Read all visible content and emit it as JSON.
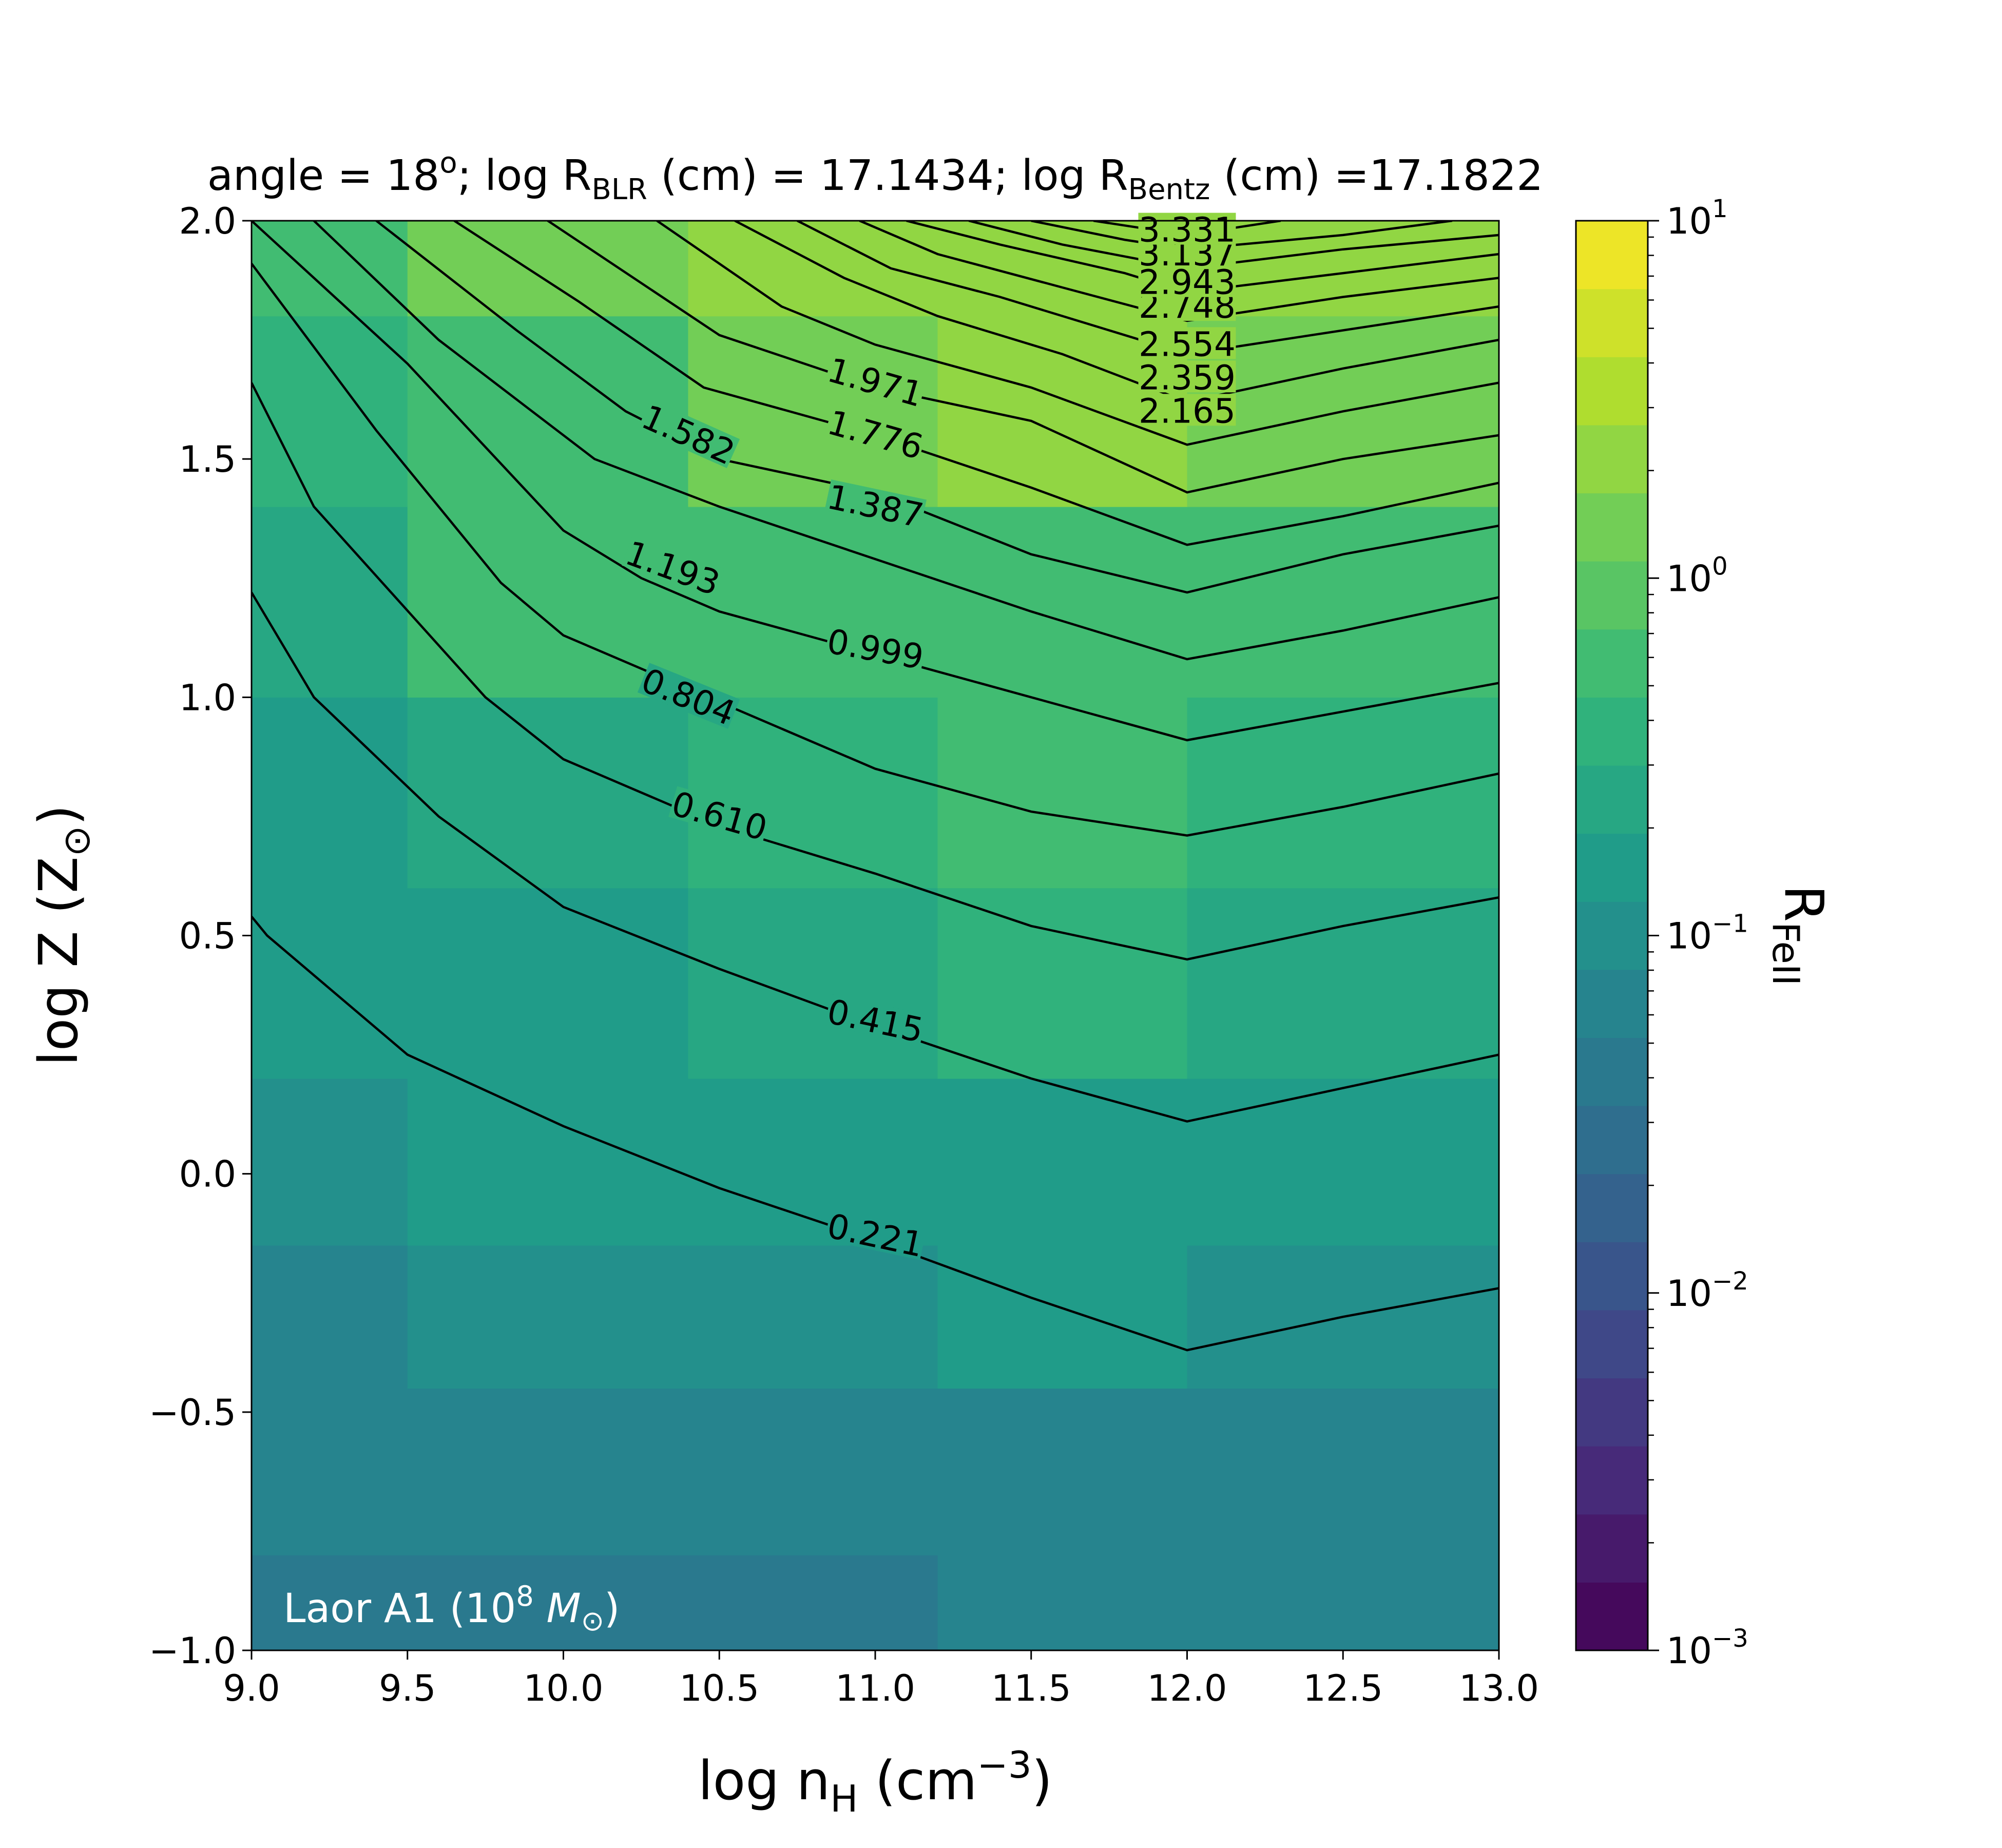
{
  "chart_data": {
    "type": "heatmap",
    "title": {
      "prefix": "angle = 18",
      "deg": "o",
      "mid1": "; log R",
      "sub1": "BLR",
      "mid2": " (cm) = 17.1434; log R",
      "sub2": "Bentz",
      "end": " (cm) =17.1822"
    },
    "xlabel": {
      "main": "log n",
      "sub": "H",
      "tail": " (cm",
      "sup": "−3",
      "close": ")"
    },
    "ylabel": {
      "main": "log Z (Z",
      "sub": "⊙",
      "close": ")"
    },
    "colorbar_label": {
      "main": "R",
      "sub": "FeII"
    },
    "annotation": {
      "main": "Laor A1 (10",
      "sup": "8",
      "tail": " ",
      "mass": "M",
      "sub": "⊙",
      "close": ")"
    },
    "xlim": [
      9.0,
      13.0
    ],
    "ylim": [
      -1.0,
      2.0
    ],
    "x_ticks": [
      9.0,
      9.5,
      10.0,
      10.5,
      11.0,
      11.5,
      12.0,
      12.5,
      13.0
    ],
    "x_tick_labels": [
      "9.0",
      "9.5",
      "10.0",
      "10.5",
      "11.0",
      "11.5",
      "12.0",
      "12.5",
      "13.0"
    ],
    "y_ticks": [
      -1.0,
      -0.5,
      0.0,
      0.5,
      1.0,
      1.5,
      2.0
    ],
    "y_tick_labels": [
      "−1.0",
      "−0.5",
      "0.0",
      "0.5",
      "1.0",
      "1.5",
      "2.0"
    ],
    "x_centers": [
      9.0,
      10.0,
      10.8,
      11.6,
      12.4,
      13.0
    ],
    "y_centers": [
      -1.0,
      -0.6,
      -0.3,
      0.0,
      0.4,
      0.8,
      1.2,
      1.6,
      2.0
    ],
    "z_log10": [
      [
        -1.45,
        -1.45,
        -1.45,
        -1.25,
        -1.25,
        -1.25
      ],
      [
        -1.25,
        -1.25,
        -1.15,
        -1.15,
        -1.15,
        -1.15
      ],
      [
        -1.15,
        -1.0,
        -1.0,
        -0.85,
        -1.0,
        -1.0
      ],
      [
        -1.0,
        -0.85,
        -0.75,
        -0.75,
        -0.85,
        -0.85
      ],
      [
        -0.85,
        -0.75,
        -0.6,
        -0.45,
        -0.6,
        -0.6
      ],
      [
        -0.75,
        -0.6,
        -0.45,
        -0.3,
        -0.45,
        -0.45
      ],
      [
        -0.6,
        -0.3,
        -0.15,
        -0.15,
        -0.15,
        -0.15
      ],
      [
        -0.45,
        -0.15,
        0.15,
        0.3,
        0.15,
        0.15
      ],
      [
        -0.3,
        0.15,
        0.3,
        0.3,
        0.3,
        0.3
      ]
    ],
    "color_scale": "viridis",
    "color_log_range": [
      -3,
      1
    ],
    "color_levels": 21,
    "colorbar_ticks": [
      -3,
      -2,
      -1,
      0,
      1
    ],
    "colorbar_tick_labels": [
      "10",
      "10",
      "10",
      "10",
      "10"
    ],
    "colorbar_tick_sups": [
      "−3",
      "−2",
      "−1",
      "0",
      "1"
    ],
    "contours": [
      {
        "label": "0.221",
        "x": [
          9.0,
          9.05,
          9.5,
          10.0,
          10.5,
          11.0,
          11.5,
          12.0,
          12.5,
          13.0
        ],
        "y": [
          0.54,
          0.5,
          0.25,
          0.1,
          -0.03,
          -0.14,
          -0.26,
          -0.37,
          -0.3,
          -0.24
        ]
      },
      {
        "label": "0.415",
        "x": [
          9.0,
          9.2,
          9.6,
          10.0,
          10.5,
          11.0,
          11.5,
          12.0,
          12.5,
          13.0
        ],
        "y": [
          1.22,
          1.0,
          0.75,
          0.56,
          0.43,
          0.31,
          0.2,
          0.11,
          0.18,
          0.25
        ]
      },
      {
        "label": "0.610",
        "x": [
          9.0,
          9.2,
          9.75,
          10.0,
          10.5,
          11.0,
          11.5,
          12.0,
          12.5,
          13.0
        ],
        "y": [
          1.66,
          1.4,
          1.0,
          0.87,
          0.73,
          0.63,
          0.52,
          0.45,
          0.52,
          0.58
        ]
      },
      {
        "label": "0.804",
        "x": [
          9.0,
          9.4,
          9.8,
          10.0,
          10.5,
          11.0,
          11.5,
          12.0,
          12.5,
          13.0
        ],
        "y": [
          1.91,
          1.56,
          1.24,
          1.13,
          0.99,
          0.85,
          0.76,
          0.71,
          0.77,
          0.84
        ]
      },
      {
        "label": "0.999",
        "x": [
          9.0,
          9.5,
          10.0,
          10.25,
          10.5,
          11.0,
          11.5,
          12.0,
          12.5,
          13.0
        ],
        "y": [
          2.0,
          1.7,
          1.35,
          1.25,
          1.18,
          1.09,
          1.0,
          0.91,
          0.97,
          1.03
        ]
      },
      {
        "label": "1.193",
        "x": [
          9.2,
          9.6,
          10.1,
          10.5,
          11.0,
          11.5,
          12.0,
          12.5,
          13.0
        ],
        "y": [
          2.0,
          1.75,
          1.5,
          1.4,
          1.29,
          1.18,
          1.08,
          1.14,
          1.21
        ]
      },
      {
        "label": "1.387",
        "x": [
          9.4,
          9.85,
          10.2,
          10.5,
          11.0,
          11.5,
          12.0,
          12.5,
          13.0
        ],
        "y": [
          2.0,
          1.77,
          1.6,
          1.5,
          1.43,
          1.3,
          1.22,
          1.3,
          1.36
        ]
      },
      {
        "label": "1.582",
        "x": [
          9.65,
          10.05,
          10.45,
          11.0,
          11.5,
          12.0,
          12.5,
          13.0
        ],
        "y": [
          2.0,
          1.83,
          1.65,
          1.55,
          1.44,
          1.32,
          1.38,
          1.45
        ]
      },
      {
        "label": "1.776",
        "x": [
          9.95,
          10.5,
          11.0,
          11.5,
          12.0,
          12.5,
          13.0
        ],
        "y": [
          2.0,
          1.76,
          1.65,
          1.58,
          1.43,
          1.5,
          1.55
        ]
      },
      {
        "label": "1.971",
        "x": [
          10.3,
          10.7,
          11.0,
          11.5,
          12.0,
          12.5,
          13.0
        ],
        "y": [
          2.0,
          1.82,
          1.74,
          1.65,
          1.53,
          1.6,
          1.66
        ]
      },
      {
        "label": "2.165",
        "x": [
          10.55,
          10.9,
          11.2,
          11.6,
          12.0,
          12.5,
          13.0
        ],
        "y": [
          2.0,
          1.88,
          1.8,
          1.72,
          1.62,
          1.69,
          1.75
        ]
      },
      {
        "label": "2.359",
        "x": [
          10.75,
          11.05,
          11.4,
          12.0,
          12.5,
          13.0
        ],
        "y": [
          2.0,
          1.9,
          1.84,
          1.72,
          1.77,
          1.82
        ]
      },
      {
        "label": "2.554",
        "x": [
          10.95,
          11.2,
          11.6,
          12.0,
          12.5,
          13.0
        ],
        "y": [
          2.0,
          1.93,
          1.86,
          1.79,
          1.84,
          1.88
        ]
      },
      {
        "label": "2.748",
        "x": [
          11.1,
          11.4,
          11.8,
          12.0,
          12.5,
          13.0
        ],
        "y": [
          2.0,
          1.95,
          1.89,
          1.85,
          1.89,
          1.93
        ]
      },
      {
        "label": "2.943",
        "x": [
          11.3,
          11.6,
          12.0,
          12.5,
          13.0
        ],
        "y": [
          2.0,
          1.95,
          1.9,
          1.94,
          1.97
        ]
      },
      {
        "label": "3.137",
        "x": [
          11.5,
          11.8,
          12.0,
          12.5,
          12.85
        ],
        "y": [
          2.0,
          1.96,
          1.94,
          1.97,
          2.0
        ]
      },
      {
        "label": "3.331",
        "x": [
          11.7,
          12.0,
          12.3
        ],
        "y": [
          2.0,
          1.97,
          2.0
        ]
      }
    ],
    "contour_labels": [
      {
        "text": "0.221",
        "x": 11.0,
        "y": -0.13,
        "angle": 12
      },
      {
        "text": "0.415",
        "x": 11.0,
        "y": 0.32,
        "angle": 12
      },
      {
        "text": "0.610",
        "x": 10.5,
        "y": 0.75,
        "angle": 16
      },
      {
        "text": "0.804",
        "x": 10.4,
        "y": 1.0,
        "angle": 22
      },
      {
        "text": "0.999",
        "x": 11.0,
        "y": 1.1,
        "angle": 10
      },
      {
        "text": "1.193",
        "x": 10.35,
        "y": 1.27,
        "angle": 20
      },
      {
        "text": "1.387",
        "x": 11.0,
        "y": 1.4,
        "angle": 12
      },
      {
        "text": "1.582",
        "x": 10.4,
        "y": 1.55,
        "angle": 24
      },
      {
        "text": "1.776",
        "x": 11.0,
        "y": 1.55,
        "angle": 16
      },
      {
        "text": "1.971",
        "x": 11.0,
        "y": 1.66,
        "angle": 16
      },
      {
        "text": "2.165",
        "x": 12.0,
        "y": 1.6,
        "angle": 0
      },
      {
        "text": "2.359",
        "x": 12.0,
        "y": 1.67,
        "angle": 0
      },
      {
        "text": "2.554",
        "x": 12.0,
        "y": 1.74,
        "angle": 0
      },
      {
        "text": "2.748",
        "x": 12.0,
        "y": 1.82,
        "angle": 0
      },
      {
        "text": "2.943",
        "x": 12.0,
        "y": 1.87,
        "angle": 0
      },
      {
        "text": "3.137",
        "x": 12.0,
        "y": 1.93,
        "angle": 0
      },
      {
        "text": "3.331",
        "x": 12.0,
        "y": 1.98,
        "angle": 0
      }
    ]
  }
}
